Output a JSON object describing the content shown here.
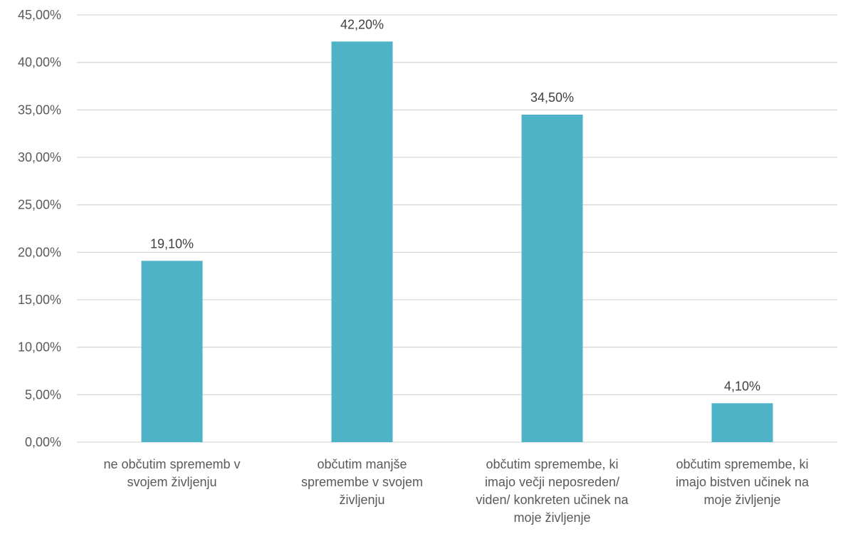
{
  "chart_data": {
    "type": "bar",
    "title": "",
    "xlabel": "",
    "ylabel": "",
    "ylim": [
      0,
      45
    ],
    "ytick_step": 5,
    "ytick_labels": [
      "0,00%",
      "5,00%",
      "10,00%",
      "15,00%",
      "20,00%",
      "25,00%",
      "30,00%",
      "35,00%",
      "40,00%",
      "45,00%"
    ],
    "grid": true,
    "legend": "none",
    "bar_color": "#4FB3C8",
    "categories": [
      [
        "ne občutim sprememb v",
        "svojem življenju"
      ],
      [
        "občutim manjše",
        "spremembe v svojem",
        "življenju"
      ],
      [
        "občutim spremembe, ki",
        "imajo večji neposreden/",
        "viden/ konkreten učinek na",
        "moje življenje"
      ],
      [
        "občutim spremembe, ki",
        "imajo bistven učinek na",
        "moje življenje"
      ]
    ],
    "values": [
      19.1,
      42.2,
      34.5,
      4.1
    ],
    "data_labels": [
      "19,10%",
      "42,20%",
      "34,50%",
      "4,10%"
    ]
  }
}
